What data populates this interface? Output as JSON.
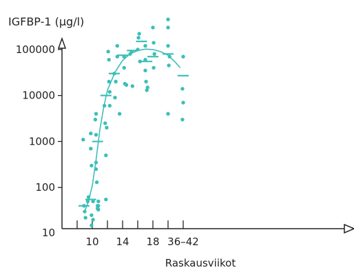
{
  "colors": {
    "accent": "#3bbfb7",
    "axis": "#222222"
  },
  "chart_data": {
    "type": "scatter",
    "title": "",
    "ylabel": "IGFBP-1 (µg/l)",
    "xlabel": "Raskausviikot",
    "y_scale": "log",
    "ylim": [
      10,
      300000
    ],
    "xlim": [
      6,
      43
    ],
    "y_ticks": [
      {
        "value": 10,
        "label": "10"
      },
      {
        "value": 100,
        "label": "100"
      },
      {
        "value": 1000,
        "label": "1000"
      },
      {
        "value": 10000,
        "label": "10000"
      },
      {
        "value": 100000,
        "label": "100000"
      }
    ],
    "x_ticks": [
      {
        "value": 8,
        "label": ""
      },
      {
        "value": 10,
        "label": "10"
      },
      {
        "value": 12,
        "label": ""
      },
      {
        "value": 14,
        "label": "14"
      },
      {
        "value": 16,
        "label": ""
      },
      {
        "value": 18,
        "label": "18"
      },
      {
        "value": 20,
        "label": ""
      },
      {
        "value": 22,
        "label": "36–42"
      }
    ],
    "points": [
      [
        8.8,
        1100
      ],
      [
        8.9,
        40
      ],
      [
        9.0,
        30
      ],
      [
        9.1,
        22
      ],
      [
        9.4,
        50
      ],
      [
        9.5,
        62
      ],
      [
        9.8,
        1500
      ],
      [
        9.8,
        700
      ],
      [
        9.9,
        300
      ],
      [
        9.9,
        15
      ],
      [
        9.9,
        25
      ],
      [
        10.1,
        50
      ],
      [
        10.1,
        20
      ],
      [
        10.4,
        3000
      ],
      [
        10.5,
        4000
      ],
      [
        10.5,
        1400
      ],
      [
        10.5,
        350
      ],
      [
        10.5,
        250
      ],
      [
        10.6,
        130
      ],
      [
        10.7,
        40
      ],
      [
        10.7,
        35
      ],
      [
        10.8,
        50
      ],
      [
        10.8,
        40
      ],
      [
        10.8,
        33
      ],
      [
        11.6,
        6000
      ],
      [
        11.7,
        2500
      ],
      [
        11.8,
        500
      ],
      [
        11.8,
        55
      ],
      [
        11.9,
        2000
      ],
      [
        12.1,
        90000
      ],
      [
        12.2,
        60000
      ],
      [
        12.2,
        20000
      ],
      [
        12.3,
        6000
      ],
      [
        12.3,
        12000
      ],
      [
        12.9,
        30000
      ],
      [
        13.0,
        9000
      ],
      [
        13.1,
        20000
      ],
      [
        13.3,
        120000
      ],
      [
        13.3,
        70000
      ],
      [
        13.6,
        4000
      ],
      [
        14.2,
        70000
      ],
      [
        14.2,
        40000
      ],
      [
        14.3,
        18000
      ],
      [
        14.5,
        17000
      ],
      [
        15.0,
        80000
      ],
      [
        15.2,
        90000
      ],
      [
        15.3,
        16000
      ],
      [
        16.0,
        100000
      ],
      [
        16.1,
        180000
      ],
      [
        16.2,
        220000
      ],
      [
        16.3,
        55000
      ],
      [
        17.0,
        120000
      ],
      [
        17.0,
        60000
      ],
      [
        17.0,
        35000
      ],
      [
        17.1,
        20000
      ],
      [
        17.2,
        13000
      ],
      [
        17.3,
        15000
      ],
      [
        18.0,
        300000
      ],
      [
        18.1,
        140000
      ],
      [
        18.2,
        80000
      ],
      [
        18.1,
        40000
      ],
      [
        20.0,
        450000
      ],
      [
        20.0,
        300000
      ],
      [
        20.0,
        120000
      ],
      [
        20.2,
        70000
      ],
      [
        20.1,
        45000
      ],
      [
        20.0,
        4000
      ],
      [
        22.0,
        70000
      ],
      [
        22.0,
        7000
      ],
      [
        21.9,
        3000
      ],
      [
        21.9,
        14000
      ]
    ],
    "medians": [
      [
        8.9,
        40
      ],
      [
        9.8,
        55
      ],
      [
        10.7,
        1000
      ],
      [
        11.8,
        10000
      ],
      [
        12.9,
        30000
      ],
      [
        14.0,
        75000
      ],
      [
        15.3,
        95000
      ],
      [
        16.5,
        150000
      ],
      [
        17.2,
        55000
      ],
      [
        18.0,
        70000
      ],
      [
        20.0,
        80000
      ],
      [
        22.0,
        27000
      ]
    ],
    "curve": [
      [
        9.0,
        30
      ],
      [
        9.5,
        50
      ],
      [
        10.0,
        110
      ],
      [
        10.5,
        400
      ],
      [
        11.0,
        1800
      ],
      [
        11.5,
        5500
      ],
      [
        12.0,
        13000
      ],
      [
        13.0,
        32000
      ],
      [
        14.0,
        58000
      ],
      [
        15.0,
        80000
      ],
      [
        16.0,
        95000
      ],
      [
        17.0,
        102000
      ],
      [
        18.0,
        100000
      ],
      [
        19.0,
        90000
      ],
      [
        20.0,
        75000
      ],
      [
        21.0,
        52000
      ],
      [
        21.6,
        40000
      ]
    ]
  }
}
